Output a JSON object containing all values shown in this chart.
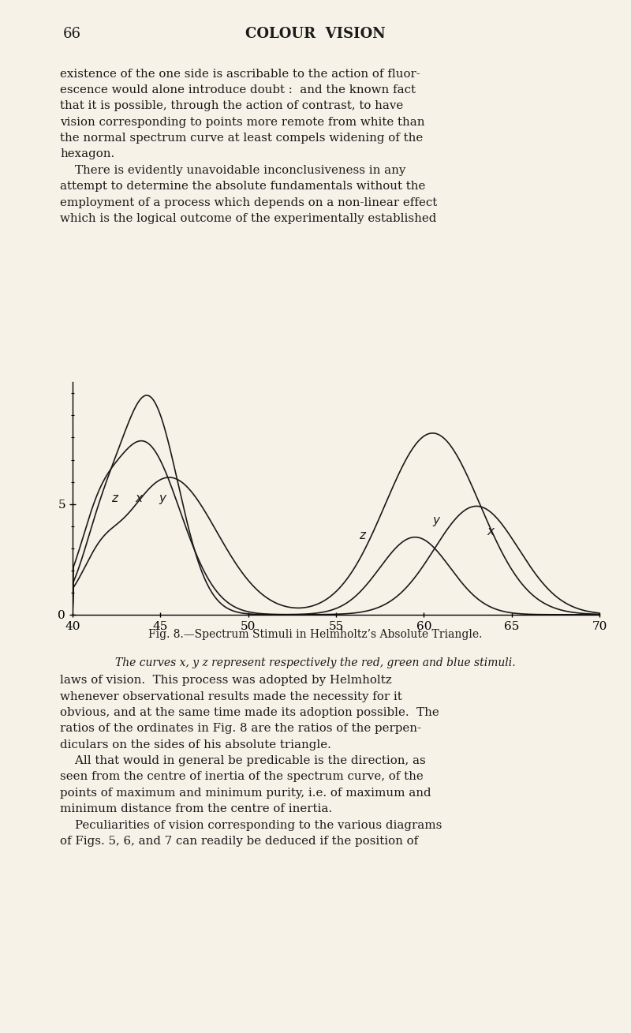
{
  "fig_title": "Fig. 8.—Spectrum Stimuli in Helmholtz’s Absolute Triangle.",
  "caption": "The curves x, y z represent respectively the red, green and blue stimuli.",
  "xlabel_ticks": [
    40,
    45,
    50,
    55,
    60,
    65,
    70
  ],
  "xlim": [
    40,
    70
  ],
  "ylim": [
    0,
    10.5
  ],
  "background_color": "#f7f2e8",
  "curve_color": "#1a1a1a",
  "page_number": "66",
  "page_title": "COLOUR  VISION",
  "text_color": "#1a1a1a",
  "text_above": "existence of the one side is ascribable to the action of fluor-\nescence would alone introduce doubt :  and the known fact\nthat it is possible, through the action of contrast, to have\nvision corresponding to points more remote from white than\nthe normal spectrum curve at least compels widening of the\nhexagon.\n    There is evidently unavoidable inconclusiveness in any\nattempt to determine the absolute fundamentals without the\nemployment of a process which depends on a non-linear effect\nwhich is the logical outcome of the experimentally established",
  "text_below": "laws of vision.  This process was adopted by Helmholtz\nwhenever observational results made the necessity for it\nobvious, and at the same time made its adoption possible.  The\nratios of the ordinates in Fig. 8 are the ratios of the perpen-\ndiculars on the sides of his absolute triangle.\n    All that would in general be predicable is the direction, as\nseen from the centre of inertia of the spectrum curve, of the\npoints of maximum and minimum purity, i.e. of maximum and\nminimum distance from the centre of inertia.\n    Peculiarities of vision corresponding to the various diagrams\nof Figs. 5, 6, and 7 can readily be deduced if the position of"
}
